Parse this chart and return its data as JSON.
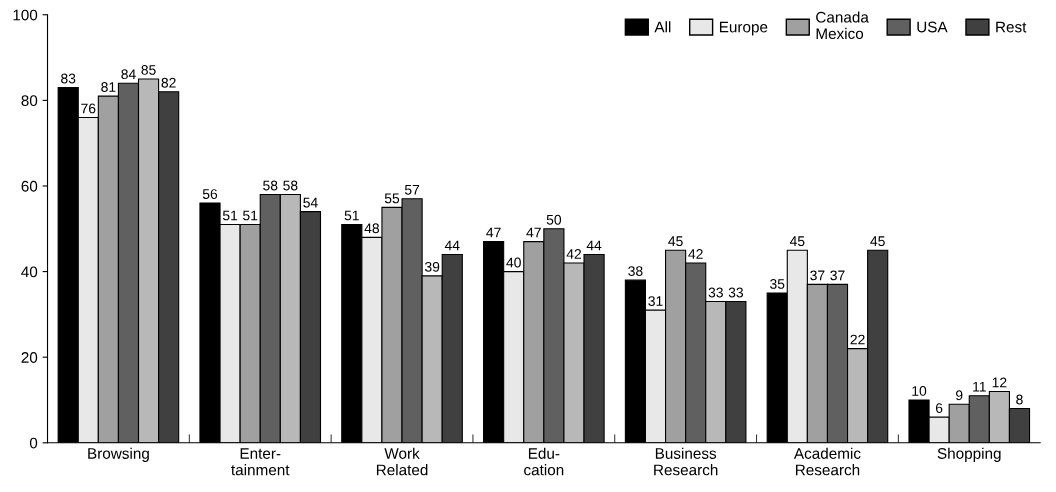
{
  "chart_data": {
    "type": "bar",
    "categories": [
      "Browsing",
      "Enter-\ntainment",
      "Work\nRelated",
      "Edu-\ncation",
      "Business\nResearch",
      "Academic\nResearch",
      "Shopping"
    ],
    "series": [
      {
        "name": "All",
        "color": "#000000",
        "values": [
          83,
          56,
          51,
          47,
          38,
          35,
          10
        ]
      },
      {
        "name": "Europe",
        "color": "#e8e8e8",
        "values": [
          76,
          51,
          48,
          40,
          31,
          45,
          6
        ]
      },
      {
        "name": "Canada\nMexico",
        "color": "#a0a0a0",
        "values": [
          81,
          51,
          55,
          47,
          45,
          37,
          9
        ]
      },
      {
        "name": "USA",
        "color": "#606060",
        "values": [
          84,
          58,
          57,
          50,
          42,
          37,
          11
        ]
      },
      {
        "color": "#b8b8b8",
        "values": [
          85,
          58,
          39,
          42,
          33,
          22,
          12
        ]
      },
      {
        "name": "Rest",
        "color": "#404040",
        "values": [
          82,
          54,
          44,
          44,
          33,
          45,
          8
        ]
      }
    ],
    "ylim": [
      0,
      100
    ],
    "yticks": [
      0,
      20,
      40,
      60,
      80,
      100
    ],
    "data_labels": true,
    "grid": false,
    "legend": "top right"
  }
}
